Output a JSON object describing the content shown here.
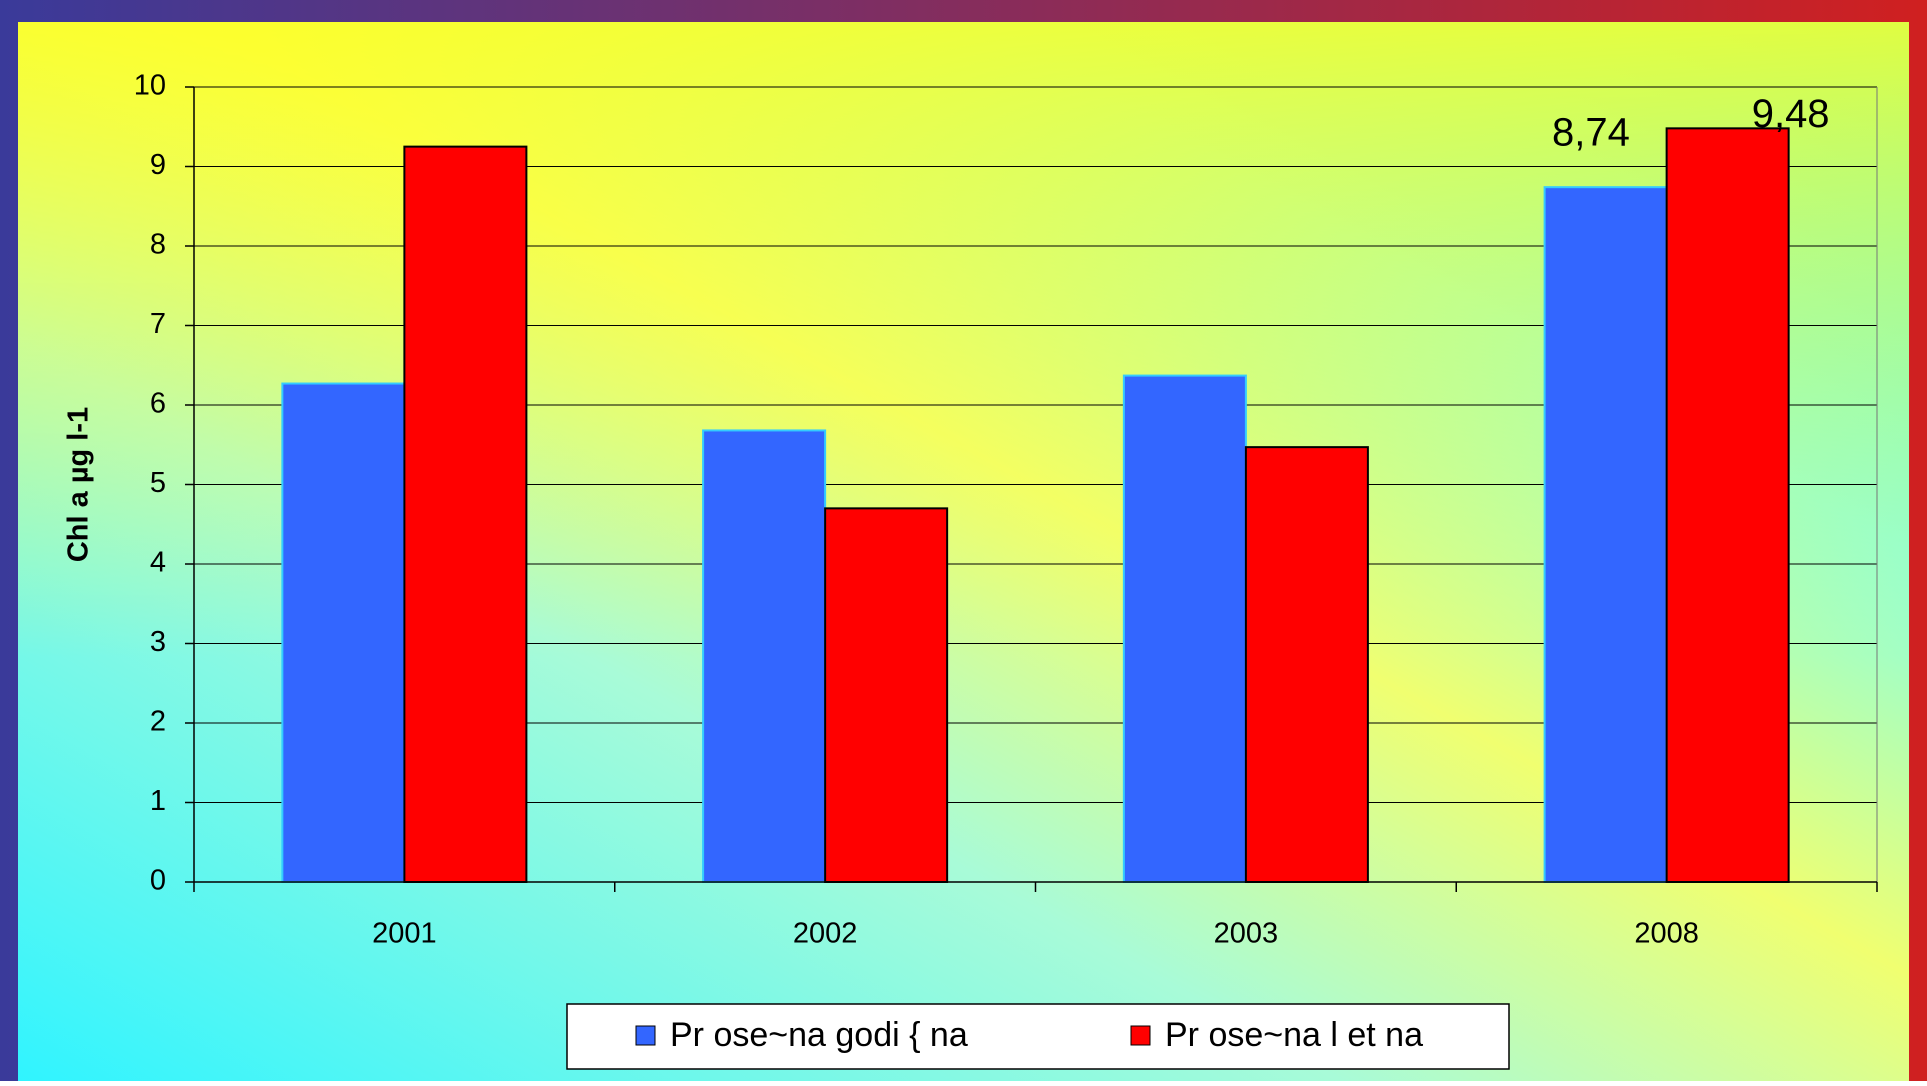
{
  "chart_data": {
    "type": "bar",
    "ylabel": "Chl a µg l-1",
    "categories": [
      "2001",
      "2002",
      "2003",
      "2008"
    ],
    "series": [
      {
        "name": "Pr ose~na godi { na",
        "color": "#3366ff",
        "values": [
          6.27,
          5.68,
          6.37,
          8.74
        ],
        "value_labels": [
          null,
          null,
          null,
          "8,74"
        ]
      },
      {
        "name": "Pr ose~na l et na",
        "color": "#ff0000",
        "values": [
          9.25,
          4.7,
          5.47,
          9.48
        ],
        "value_labels": [
          null,
          null,
          null,
          "9,48"
        ]
      }
    ],
    "ylim": [
      0,
      10
    ],
    "yticks": [
      0,
      1,
      2,
      3,
      4,
      5,
      6,
      7,
      8,
      9,
      10
    ],
    "grid": true,
    "legend": "bottom"
  }
}
